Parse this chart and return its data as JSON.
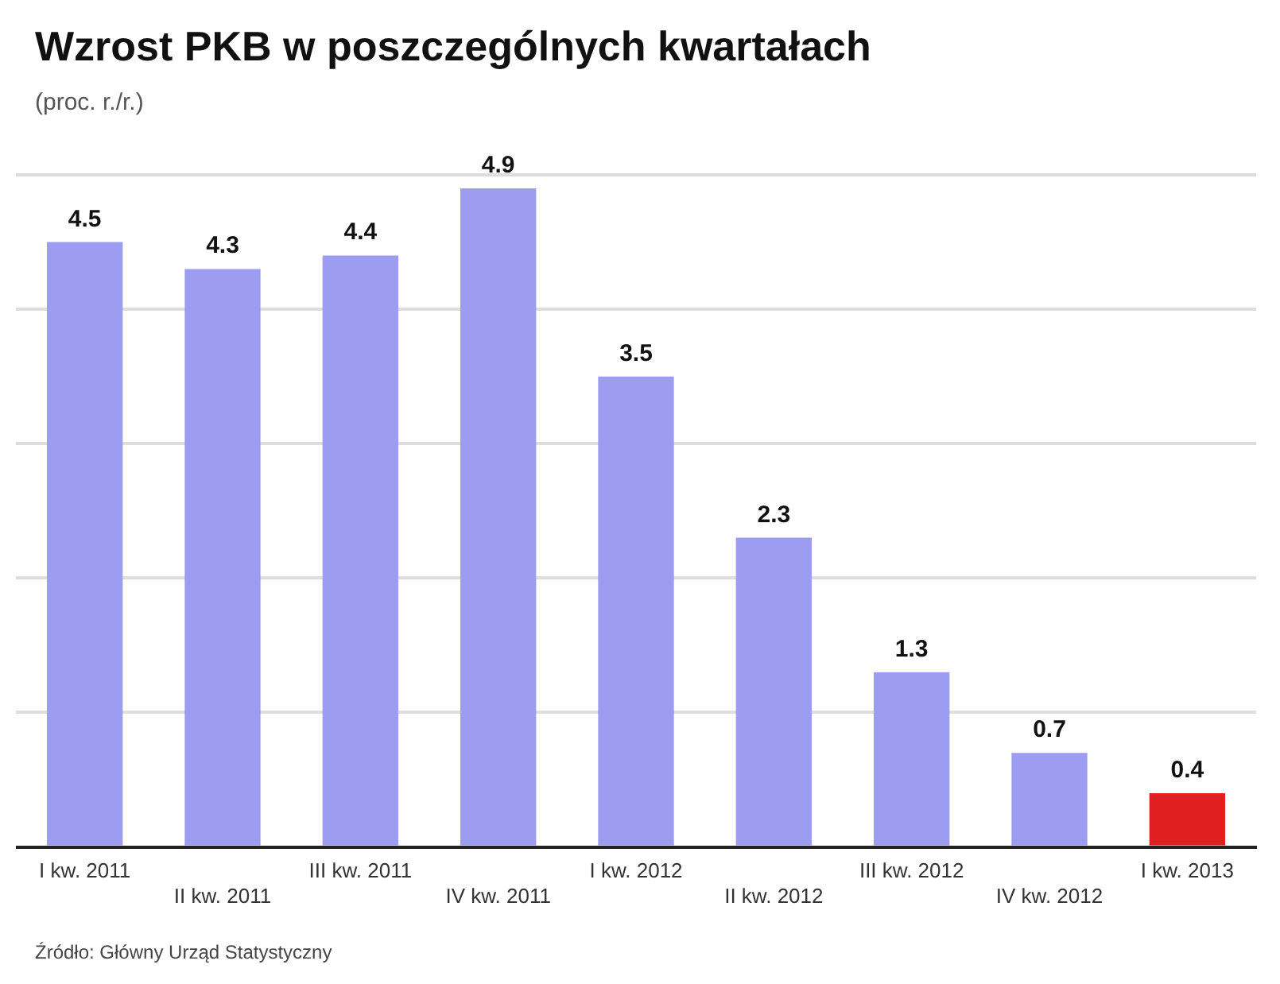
{
  "chart_data": {
    "type": "bar",
    "title": "Wzrost PKB w poszczególnych kwartałach",
    "subtitle": "(proc. r./r.)",
    "categories": [
      "I kw. 2011",
      "II kw. 2011",
      "III kw. 2011",
      "IV kw. 2011",
      "I kw. 2012",
      "II kw. 2012",
      "III kw. 2012",
      "IV kw. 2012",
      "I kw. 2013"
    ],
    "values": [
      4.5,
      4.3,
      4.4,
      4.9,
      3.5,
      2.3,
      1.3,
      0.7,
      0.4
    ],
    "colors": [
      "#9c9cf0",
      "#9c9cf0",
      "#9c9cf0",
      "#9c9cf0",
      "#9c9cf0",
      "#9c9cf0",
      "#9c9cf0",
      "#9c9cf0",
      "#e02020"
    ],
    "ylim": [
      0,
      5
    ],
    "yticks": [
      {
        "value": 0,
        "label": null
      },
      {
        "value": 1,
        "label": null
      },
      {
        "value": 2,
        "label": null
      },
      {
        "value": 3,
        "label": null
      },
      {
        "value": 4,
        "label": null
      },
      {
        "value": 5,
        "label": null
      }
    ],
    "tick_labels": "x",
    "grid": "y",
    "legend": false,
    "data_labels": true,
    "annotations": [
      "Źródło: Główny Urząd Statystyczny"
    ]
  }
}
